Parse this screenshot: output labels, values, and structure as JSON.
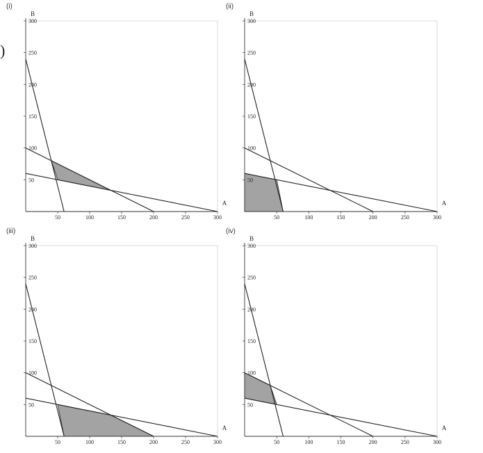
{
  "paren_fragment": ")",
  "colors": {
    "region": "#a3a3a3",
    "line": "#222222",
    "frame": "#d0d0d0",
    "axis": "#333333"
  },
  "chart_data": [
    {
      "type": "line",
      "panel_label": "(i)",
      "xlabel": "A",
      "ylabel": "B",
      "xlim": [
        0,
        300
      ],
      "ylim": [
        0,
        300
      ],
      "x_ticks": [
        50,
        100,
        150,
        200,
        250,
        300
      ],
      "y_ticks": [
        50,
        100,
        150,
        200,
        250,
        300
      ],
      "grid": false,
      "series": [
        {
          "points": [
            [
              0,
              240
            ],
            [
              60,
              0
            ]
          ]
        },
        {
          "points": [
            [
              0,
              100
            ],
            [
              200,
              0
            ]
          ]
        },
        {
          "points": [
            [
              0,
              60
            ],
            [
              300,
              0
            ]
          ]
        }
      ],
      "shaded_region": [
        [
          40,
          80
        ],
        [
          133.3,
          33.3
        ],
        [
          50,
          50
        ]
      ]
    },
    {
      "type": "line",
      "panel_label": "(ii)",
      "xlabel": "A",
      "ylabel": "B",
      "xlim": [
        0,
        300
      ],
      "ylim": [
        0,
        300
      ],
      "x_ticks": [
        50,
        100,
        150,
        200,
        250,
        300
      ],
      "y_ticks": [
        50,
        100,
        150,
        200,
        250,
        300
      ],
      "grid": false,
      "series": [
        {
          "points": [
            [
              0,
              240
            ],
            [
              60,
              0
            ]
          ]
        },
        {
          "points": [
            [
              0,
              100
            ],
            [
              200,
              0
            ]
          ]
        },
        {
          "points": [
            [
              0,
              60
            ],
            [
              300,
              0
            ]
          ]
        }
      ],
      "shaded_region": [
        [
          0,
          0
        ],
        [
          0,
          60
        ],
        [
          50,
          50
        ],
        [
          60,
          0
        ]
      ]
    },
    {
      "type": "line",
      "panel_label": "(iii)",
      "xlabel": "A",
      "ylabel": "B",
      "xlim": [
        0,
        300
      ],
      "ylim": [
        0,
        300
      ],
      "x_ticks": [
        50,
        100,
        150,
        200,
        250,
        300
      ],
      "y_ticks": [
        50,
        100,
        150,
        200,
        250,
        300
      ],
      "grid": false,
      "series": [
        {
          "points": [
            [
              0,
              240
            ],
            [
              60,
              0
            ]
          ]
        },
        {
          "points": [
            [
              0,
              100
            ],
            [
              200,
              0
            ]
          ]
        },
        {
          "points": [
            [
              0,
              60
            ],
            [
              300,
              0
            ]
          ]
        }
      ],
      "shaded_region": [
        [
          50,
          50
        ],
        [
          133.3,
          33.3
        ],
        [
          200,
          0
        ],
        [
          60,
          0
        ]
      ]
    },
    {
      "type": "line",
      "panel_label": "(iv)",
      "xlabel": "A",
      "ylabel": "B",
      "xlim": [
        0,
        300
      ],
      "ylim": [
        0,
        300
      ],
      "x_ticks": [
        50,
        100,
        150,
        200,
        250,
        300
      ],
      "y_ticks": [
        50,
        100,
        150,
        200,
        250,
        300
      ],
      "grid": false,
      "series": [
        {
          "points": [
            [
              0,
              240
            ],
            [
              60,
              0
            ]
          ]
        },
        {
          "points": [
            [
              0,
              100
            ],
            [
              200,
              0
            ]
          ]
        },
        {
          "points": [
            [
              0,
              60
            ],
            [
              300,
              0
            ]
          ]
        }
      ],
      "shaded_region": [
        [
          0,
          60
        ],
        [
          0,
          100
        ],
        [
          40,
          80
        ],
        [
          50,
          50
        ]
      ]
    }
  ]
}
